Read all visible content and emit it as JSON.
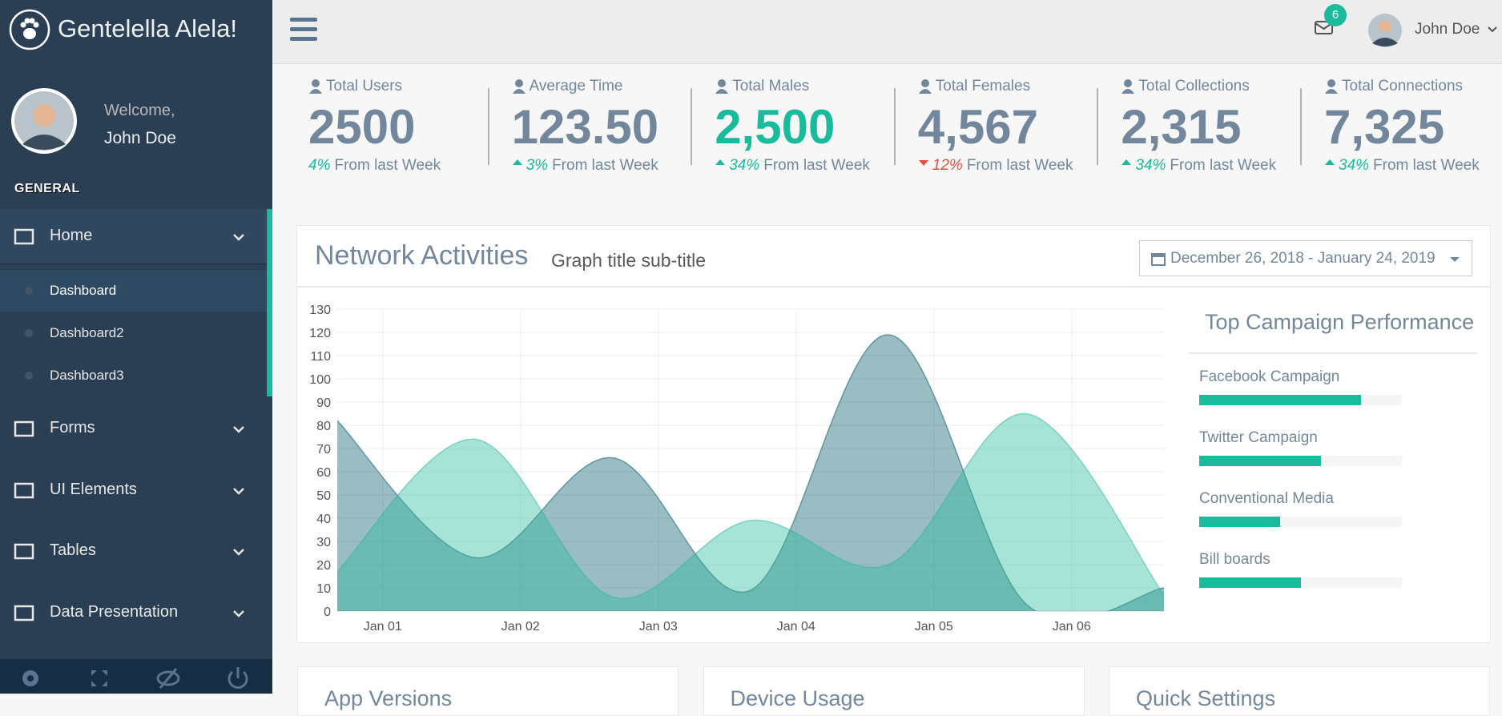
{
  "sidebar": {
    "brand": "Gentelella Alela!",
    "welcome": "Welcome,",
    "user": "John Doe",
    "section": "GENERAL",
    "menu": [
      {
        "label": "Home",
        "children": [
          "Dashboard",
          "Dashboard2",
          "Dashboard3"
        ]
      },
      {
        "label": "Forms"
      },
      {
        "label": "UI Elements"
      },
      {
        "label": "Tables"
      },
      {
        "label": "Data Presentation"
      }
    ]
  },
  "topbar": {
    "notifications": "6",
    "user": "John Doe"
  },
  "stats": [
    {
      "label": "Total Users",
      "value": "2500",
      "change": "4%",
      "trend": "none",
      "note": "From last Week"
    },
    {
      "label": "Average Time",
      "value": "123.50",
      "change": "3%",
      "trend": "up",
      "note": "From last Week"
    },
    {
      "label": "Total Males",
      "value": "2,500",
      "change": "34%",
      "trend": "up",
      "note": "From last Week",
      "highlight": true
    },
    {
      "label": "Total Females",
      "value": "4,567",
      "change": "12%",
      "trend": "down",
      "note": "From last Week"
    },
    {
      "label": "Total Collections",
      "value": "2,315",
      "change": "34%",
      "trend": "up",
      "note": "From last Week"
    },
    {
      "label": "Total Connections",
      "value": "7,325",
      "change": "34%",
      "trend": "up",
      "note": "From last Week"
    }
  ],
  "panel": {
    "title": "Network Activities",
    "subtitle": "Graph title sub-title",
    "date_range": "December 26, 2018 - January 24, 2019"
  },
  "chart_data": {
    "type": "area",
    "x": [
      -0.33,
      0.67,
      1.67,
      2.67,
      3.67,
      4.67,
      5.67
    ],
    "xlim": [
      -0.33,
      5.67
    ],
    "xticks": [
      {
        "value": 0,
        "label": "Jan 01"
      },
      {
        "value": 1,
        "label": "Jan 02"
      },
      {
        "value": 2,
        "label": "Jan 03"
      },
      {
        "value": 3,
        "label": "Jan 04"
      },
      {
        "value": 4,
        "label": "Jan 05"
      },
      {
        "value": 5,
        "label": "Jan 06"
      }
    ],
    "ylim": [
      0,
      130
    ],
    "yticks": [
      0,
      10,
      20,
      30,
      40,
      50,
      60,
      70,
      80,
      90,
      100,
      110,
      120,
      130
    ],
    "grid": true,
    "series": [
      {
        "color": "#03586A",
        "values": [
          82,
          23,
          66,
          9,
          119,
          3,
          10
        ]
      },
      {
        "color": "#26B99A",
        "values": [
          17,
          74,
          6,
          39,
          20,
          85,
          7
        ]
      }
    ]
  },
  "campaigns": {
    "title": "Top Campaign Performance",
    "color": "#1ABB9C",
    "items": [
      {
        "name": "Facebook Campaign",
        "value": 80
      },
      {
        "name": "Twitter Campaign",
        "value": 60
      },
      {
        "name": "Conventional Media",
        "value": 40
      },
      {
        "name": "Bill boards",
        "value": 50
      }
    ]
  },
  "bottom_panels": [
    "App Versions",
    "Device Usage",
    "Quick Settings"
  ]
}
